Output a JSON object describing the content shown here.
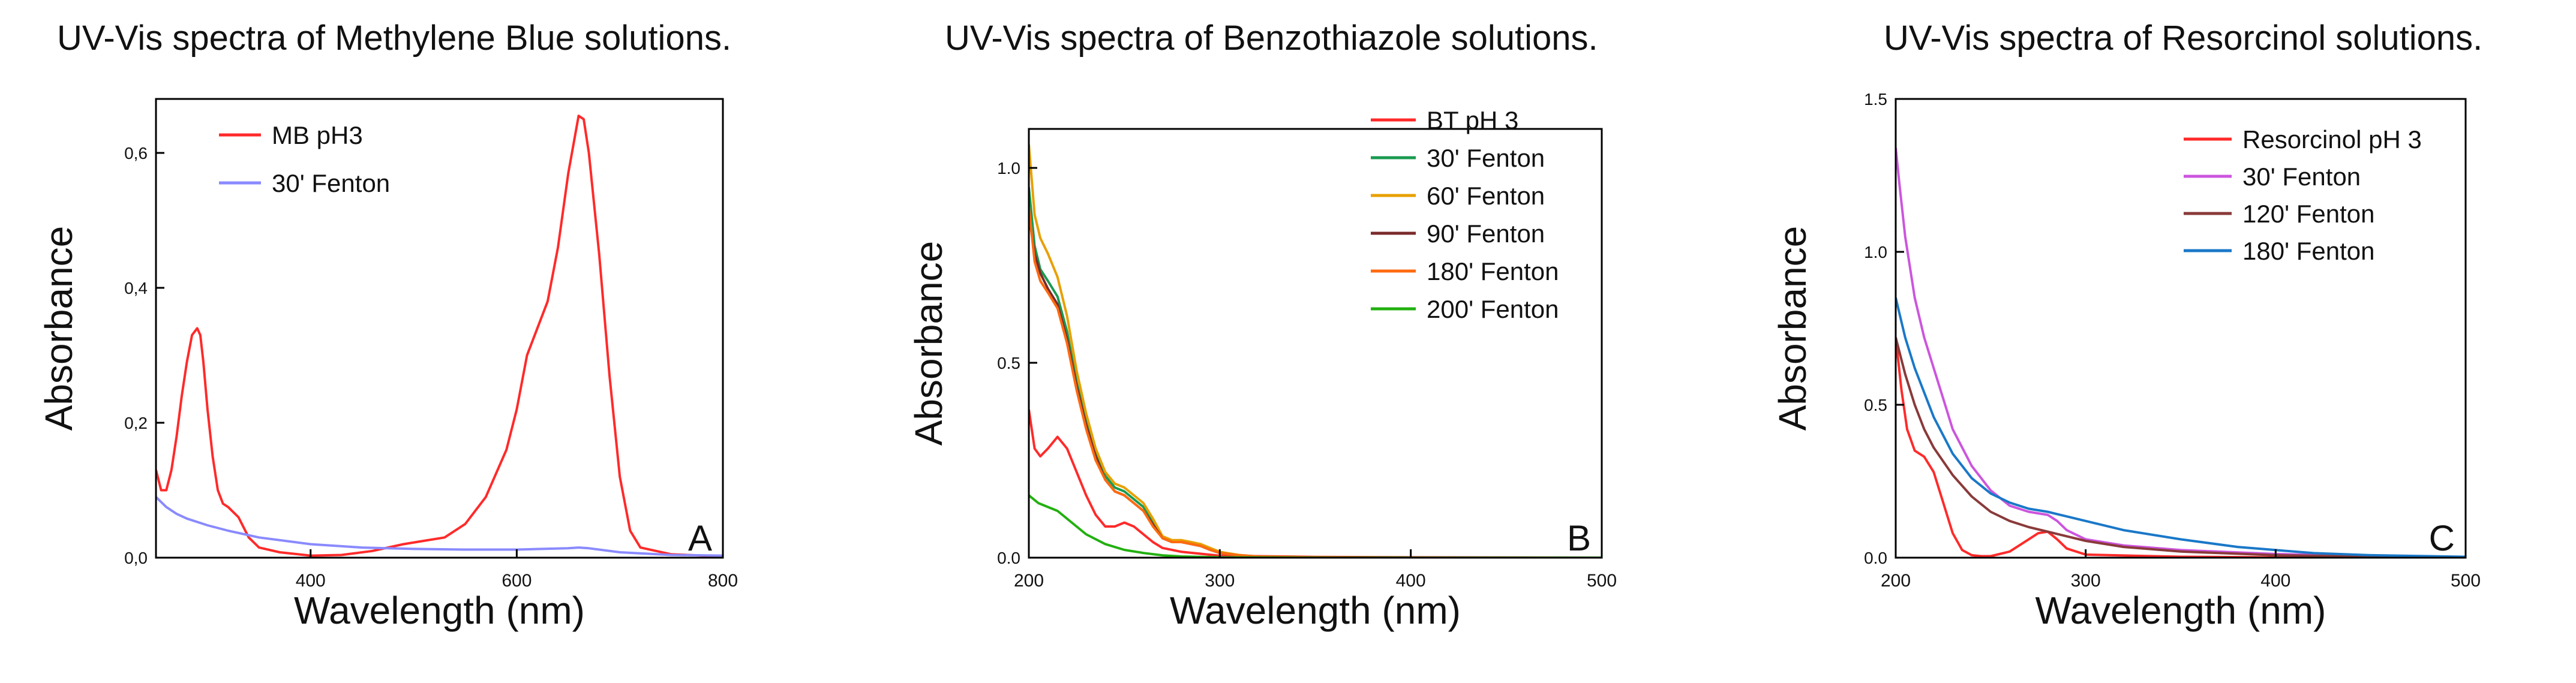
{
  "chart_data": [
    {
      "type": "line",
      "title": "UV-Vis spectra of Methylene Blue solutions.",
      "xlabel": "Wavelength (nm)",
      "ylabel": "Absorbance",
      "panel_letter": "A",
      "xlim": [
        250,
        800
      ],
      "ylim": [
        0,
        0.68
      ],
      "xticks": [
        400,
        600,
        800
      ],
      "yticks": [
        0.0,
        0.2,
        0.4,
        0.6
      ],
      "xtick_labels": [
        "400",
        "600",
        "800"
      ],
      "ytick_labels": [
        "0,0",
        "0,2",
        "0,4",
        "0,6"
      ],
      "legend_position": "top-left",
      "series": [
        {
          "name": "MB pH3",
          "color": "#ff2a2a",
          "x": [
            250,
            255,
            260,
            265,
            270,
            275,
            280,
            285,
            290,
            293,
            296,
            300,
            305,
            310,
            315,
            320,
            330,
            340,
            350,
            370,
            400,
            430,
            460,
            490,
            510,
            530,
            550,
            570,
            590,
            600,
            610,
            620,
            630,
            640,
            650,
            660,
            665,
            670,
            680,
            690,
            700,
            710,
            720,
            750,
            800
          ],
          "y": [
            0.13,
            0.1,
            0.1,
            0.13,
            0.18,
            0.24,
            0.29,
            0.33,
            0.34,
            0.33,
            0.29,
            0.22,
            0.15,
            0.1,
            0.08,
            0.075,
            0.06,
            0.03,
            0.015,
            0.008,
            0.003,
            0.004,
            0.01,
            0.02,
            0.025,
            0.03,
            0.05,
            0.09,
            0.16,
            0.22,
            0.3,
            0.34,
            0.38,
            0.46,
            0.57,
            0.655,
            0.65,
            0.6,
            0.45,
            0.27,
            0.12,
            0.04,
            0.015,
            0.005,
            0.002
          ]
        },
        {
          "name": "30' Fenton",
          "color": "#8a8aff",
          "x": [
            250,
            260,
            270,
            280,
            300,
            320,
            350,
            380,
            400,
            450,
            500,
            550,
            600,
            650,
            660,
            670,
            700,
            750,
            800
          ],
          "y": [
            0.09,
            0.075,
            0.065,
            0.058,
            0.048,
            0.04,
            0.03,
            0.024,
            0.02,
            0.015,
            0.013,
            0.012,
            0.012,
            0.014,
            0.015,
            0.014,
            0.008,
            0.004,
            0.003
          ]
        }
      ]
    },
    {
      "type": "line",
      "title": "UV-Vis spectra of Benzothiazole solutions.",
      "xlabel": "Wavelength (nm)",
      "ylabel": "Absorbance",
      "panel_letter": "B",
      "xlim": [
        200,
        500
      ],
      "ylim": [
        0,
        1.1
      ],
      "xticks": [
        200,
        300,
        400,
        500
      ],
      "yticks": [
        0.0,
        0.5,
        1.0
      ],
      "xtick_labels": [
        "200",
        "300",
        "400",
        "500"
      ],
      "ytick_labels": [
        "0.0",
        "0.5",
        "1.0"
      ],
      "legend_position": "top-right",
      "series": [
        {
          "name": "BT pH 3",
          "color": "#ff2a2a",
          "x": [
            200,
            203,
            206,
            210,
            215,
            220,
            225,
            230,
            235,
            240,
            245,
            250,
            255,
            260,
            265,
            270,
            280,
            290,
            300,
            350,
            400,
            500
          ],
          "y": [
            0.38,
            0.28,
            0.26,
            0.28,
            0.31,
            0.28,
            0.22,
            0.16,
            0.11,
            0.08,
            0.08,
            0.09,
            0.08,
            0.06,
            0.04,
            0.025,
            0.015,
            0.01,
            0.005,
            0.002,
            0.001,
            0.0
          ]
        },
        {
          "name": "30' Fenton",
          "color": "#1a9a50",
          "x": [
            200,
            203,
            206,
            210,
            215,
            220,
            225,
            230,
            235,
            240,
            245,
            250,
            255,
            260,
            265,
            270,
            275,
            280,
            285,
            290,
            295,
            300,
            310,
            320,
            350,
            400,
            500
          ],
          "y": [
            0.95,
            0.8,
            0.74,
            0.71,
            0.67,
            0.58,
            0.45,
            0.35,
            0.27,
            0.21,
            0.18,
            0.17,
            0.15,
            0.13,
            0.09,
            0.05,
            0.04,
            0.04,
            0.035,
            0.03,
            0.02,
            0.012,
            0.006,
            0.003,
            0.001,
            0.0,
            0.0
          ]
        },
        {
          "name": "60' Fenton",
          "color": "#e8a000",
          "x": [
            200,
            203,
            206,
            210,
            215,
            220,
            225,
            230,
            235,
            240,
            245,
            250,
            255,
            260,
            265,
            270,
            275,
            280,
            285,
            290,
            295,
            300,
            310,
            320,
            350,
            400,
            500
          ],
          "y": [
            1.06,
            0.88,
            0.82,
            0.78,
            0.72,
            0.62,
            0.48,
            0.37,
            0.28,
            0.22,
            0.19,
            0.18,
            0.16,
            0.14,
            0.1,
            0.055,
            0.045,
            0.045,
            0.04,
            0.035,
            0.025,
            0.015,
            0.007,
            0.003,
            0.001,
            0.0,
            0.0
          ]
        },
        {
          "name": "90' Fenton",
          "color": "#7a2a2a",
          "x": [
            200,
            203,
            206,
            210,
            215,
            220,
            225,
            230,
            235,
            240,
            245,
            250,
            255,
            260,
            265,
            270,
            275,
            280,
            285,
            290,
            295,
            300,
            310,
            320,
            350,
            400,
            500
          ],
          "y": [
            0.88,
            0.78,
            0.73,
            0.69,
            0.65,
            0.56,
            0.44,
            0.34,
            0.26,
            0.2,
            0.17,
            0.16,
            0.14,
            0.12,
            0.085,
            0.05,
            0.04,
            0.04,
            0.035,
            0.03,
            0.02,
            0.012,
            0.006,
            0.003,
            0.001,
            0.0,
            0.0
          ]
        },
        {
          "name": "180' Fenton",
          "color": "#ff6a10",
          "x": [
            200,
            203,
            206,
            210,
            215,
            220,
            225,
            230,
            235,
            240,
            245,
            250,
            255,
            260,
            265,
            270,
            275,
            280,
            285,
            290,
            295,
            300,
            310,
            320,
            350,
            400,
            500
          ],
          "y": [
            0.9,
            0.76,
            0.71,
            0.68,
            0.64,
            0.55,
            0.43,
            0.33,
            0.25,
            0.2,
            0.17,
            0.16,
            0.14,
            0.12,
            0.08,
            0.05,
            0.04,
            0.04,
            0.035,
            0.03,
            0.02,
            0.012,
            0.006,
            0.003,
            0.001,
            0.0,
            0.0
          ]
        },
        {
          "name": "200' Fenton",
          "color": "#22b010",
          "x": [
            200,
            205,
            210,
            215,
            220,
            225,
            230,
            240,
            250,
            260,
            270,
            280,
            300,
            350,
            400,
            500
          ],
          "y": [
            0.16,
            0.14,
            0.13,
            0.12,
            0.1,
            0.08,
            0.06,
            0.035,
            0.02,
            0.012,
            0.006,
            0.003,
            0.001,
            0.0,
            0.0,
            0.0
          ]
        }
      ]
    },
    {
      "type": "line",
      "title": "UV-Vis spectra of Resorcinol solutions.",
      "xlabel": "Wavelength (nm)",
      "ylabel": "Absorbance",
      "panel_letter": "C",
      "xlim": [
        200,
        500
      ],
      "ylim": [
        0,
        1.5
      ],
      "xticks": [
        200,
        300,
        400,
        500
      ],
      "yticks": [
        0.0,
        0.5,
        1.0,
        1.5
      ],
      "xtick_labels": [
        "200",
        "300",
        "400",
        "500"
      ],
      "ytick_labels": [
        "0.0",
        "0.5",
        "1.0",
        "1.5"
      ],
      "legend_position": "top-right",
      "series": [
        {
          "name": "Resorcinol pH 3",
          "color": "#ff2a2a",
          "x": [
            200,
            203,
            206,
            210,
            215,
            220,
            225,
            230,
            235,
            240,
            245,
            250,
            260,
            270,
            275,
            280,
            285,
            290,
            300,
            350,
            400,
            500
          ],
          "y": [
            0.72,
            0.55,
            0.42,
            0.35,
            0.33,
            0.28,
            0.18,
            0.08,
            0.025,
            0.008,
            0.005,
            0.005,
            0.02,
            0.06,
            0.08,
            0.085,
            0.06,
            0.03,
            0.01,
            0.003,
            0.001,
            0.0
          ]
        },
        {
          "name": "30' Fenton",
          "color": "#cc55dd",
          "x": [
            200,
            202,
            205,
            210,
            215,
            220,
            225,
            230,
            240,
            250,
            260,
            270,
            280,
            285,
            290,
            300,
            320,
            350,
            400,
            450,
            500
          ],
          "y": [
            1.34,
            1.22,
            1.05,
            0.85,
            0.72,
            0.62,
            0.52,
            0.42,
            0.3,
            0.22,
            0.17,
            0.15,
            0.14,
            0.12,
            0.09,
            0.06,
            0.04,
            0.025,
            0.012,
            0.005,
            0.002
          ]
        },
        {
          "name": "120' Fenton",
          "color": "#8a3a3a",
          "x": [
            200,
            205,
            210,
            215,
            220,
            230,
            240,
            250,
            260,
            270,
            280,
            290,
            300,
            320,
            350,
            400,
            450,
            500
          ],
          "y": [
            0.72,
            0.6,
            0.5,
            0.42,
            0.36,
            0.27,
            0.2,
            0.15,
            0.12,
            0.1,
            0.085,
            0.07,
            0.055,
            0.035,
            0.02,
            0.008,
            0.003,
            0.001
          ]
        },
        {
          "name": "180' Fenton",
          "color": "#1a78c8",
          "x": [
            200,
            205,
            210,
            215,
            220,
            230,
            240,
            250,
            260,
            270,
            280,
            300,
            320,
            350,
            380,
            400,
            420,
            450,
            500
          ],
          "y": [
            0.85,
            0.72,
            0.62,
            0.54,
            0.46,
            0.34,
            0.26,
            0.21,
            0.18,
            0.16,
            0.15,
            0.12,
            0.09,
            0.06,
            0.035,
            0.025,
            0.015,
            0.008,
            0.003
          ]
        }
      ]
    }
  ]
}
